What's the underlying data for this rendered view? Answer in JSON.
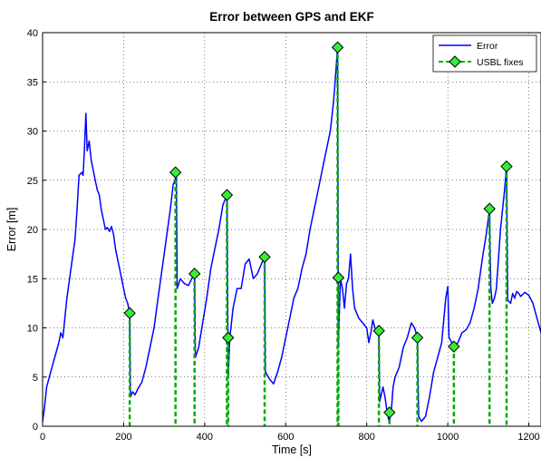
{
  "chart_data": {
    "type": "line",
    "title": "Error between GPS and EKF",
    "xlabel": "Time [s]",
    "ylabel": "Error [m]",
    "xlim": [
      0,
      1230
    ],
    "ylim": [
      0,
      40
    ],
    "xticks": [
      0,
      200,
      400,
      600,
      800,
      1000,
      1200
    ],
    "yticks": [
      0,
      5,
      10,
      15,
      20,
      25,
      30,
      35,
      40
    ],
    "grid": true,
    "legend_position": "top-right",
    "series": [
      {
        "name": "Error",
        "color": "#0000ff",
        "style": "solid",
        "points": [
          [
            0,
            0.5
          ],
          [
            5,
            2
          ],
          [
            10,
            4
          ],
          [
            20,
            5.5
          ],
          [
            30,
            7
          ],
          [
            40,
            8.5
          ],
          [
            45,
            9.5
          ],
          [
            50,
            9
          ],
          [
            55,
            11
          ],
          [
            60,
            13
          ],
          [
            70,
            16
          ],
          [
            80,
            19
          ],
          [
            85,
            22
          ],
          [
            90,
            25.5
          ],
          [
            97,
            25.8
          ],
          [
            100,
            25.5
          ],
          [
            103,
            28
          ],
          [
            107,
            31.8
          ],
          [
            110,
            28
          ],
          [
            115,
            29
          ],
          [
            120,
            27
          ],
          [
            125,
            26
          ],
          [
            130,
            25
          ],
          [
            135,
            24
          ],
          [
            140,
            23.5
          ],
          [
            145,
            22
          ],
          [
            150,
            21
          ],
          [
            155,
            20
          ],
          [
            160,
            20.2
          ],
          [
            165,
            19.8
          ],
          [
            170,
            20.3
          ],
          [
            175,
            19.5
          ],
          [
            180,
            18
          ],
          [
            185,
            17
          ],
          [
            190,
            16
          ],
          [
            195,
            15
          ],
          [
            200,
            14
          ],
          [
            205,
            13
          ],
          [
            210,
            12.5
          ],
          [
            215,
            11.5
          ],
          [
            217,
            3
          ],
          [
            222,
            3.5
          ],
          [
            228,
            3.2
          ],
          [
            235,
            3.8
          ],
          [
            245,
            4.5
          ],
          [
            255,
            6
          ],
          [
            265,
            8
          ],
          [
            275,
            10
          ],
          [
            285,
            13
          ],
          [
            295,
            16
          ],
          [
            305,
            19
          ],
          [
            315,
            22
          ],
          [
            322,
            24.5
          ],
          [
            328,
            25.2
          ],
          [
            330,
            25.8
          ],
          [
            332,
            14
          ],
          [
            340,
            15
          ],
          [
            350,
            14.5
          ],
          [
            360,
            14.3
          ],
          [
            368,
            15
          ],
          [
            375,
            15.5
          ],
          [
            377,
            7
          ],
          [
            385,
            8
          ],
          [
            395,
            10.5
          ],
          [
            405,
            13
          ],
          [
            415,
            16
          ],
          [
            425,
            18
          ],
          [
            435,
            20
          ],
          [
            445,
            22.5
          ],
          [
            455,
            23.5
          ],
          [
            458,
            5
          ],
          [
            462,
            9
          ],
          [
            470,
            12
          ],
          [
            480,
            14
          ],
          [
            490,
            14
          ],
          [
            500,
            16.5
          ],
          [
            510,
            17
          ],
          [
            520,
            15
          ],
          [
            530,
            15.5
          ],
          [
            540,
            16.5
          ],
          [
            548,
            17.2
          ],
          [
            550,
            5.5
          ],
          [
            560,
            4.8
          ],
          [
            570,
            4.3
          ],
          [
            580,
            5.5
          ],
          [
            590,
            7
          ],
          [
            600,
            9
          ],
          [
            610,
            11
          ],
          [
            620,
            13
          ],
          [
            630,
            14
          ],
          [
            640,
            16
          ],
          [
            650,
            17.5
          ],
          [
            660,
            20
          ],
          [
            670,
            22
          ],
          [
            680,
            24
          ],
          [
            690,
            26
          ],
          [
            700,
            28
          ],
          [
            710,
            30
          ],
          [
            718,
            33
          ],
          [
            722,
            35
          ],
          [
            728,
            38.5
          ],
          [
            730,
            8.5
          ],
          [
            735,
            15
          ],
          [
            740,
            14
          ],
          [
            745,
            12
          ],
          [
            750,
            14.5
          ],
          [
            755,
            15
          ],
          [
            760,
            17.5
          ],
          [
            765,
            14
          ],
          [
            770,
            12
          ],
          [
            780,
            11
          ],
          [
            790,
            10.5
          ],
          [
            800,
            10
          ],
          [
            805,
            8.5
          ],
          [
            810,
            9.5
          ],
          [
            815,
            10.8
          ],
          [
            820,
            10
          ],
          [
            825,
            9.7
          ],
          [
            830,
            9.5
          ],
          [
            832,
            2.5
          ],
          [
            840,
            4
          ],
          [
            845,
            3
          ],
          [
            850,
            1.5
          ],
          [
            855,
            0.5
          ],
          [
            860,
            1.3
          ],
          [
            865,
            4
          ],
          [
            870,
            5
          ],
          [
            880,
            6
          ],
          [
            890,
            8
          ],
          [
            900,
            9
          ],
          [
            910,
            10.5
          ],
          [
            918,
            10
          ],
          [
            925,
            9
          ],
          [
            928,
            1
          ],
          [
            935,
            0.5
          ],
          [
            945,
            1
          ],
          [
            955,
            3
          ],
          [
            965,
            5.5
          ],
          [
            975,
            7
          ],
          [
            985,
            8.5
          ],
          [
            995,
            13
          ],
          [
            1000,
            14.2
          ],
          [
            1003,
            9
          ],
          [
            1010,
            8.5
          ],
          [
            1015,
            8
          ],
          [
            1025,
            8.5
          ],
          [
            1035,
            9.5
          ],
          [
            1045,
            9.8
          ],
          [
            1055,
            10.5
          ],
          [
            1065,
            12
          ],
          [
            1075,
            14
          ],
          [
            1085,
            17
          ],
          [
            1095,
            19.5
          ],
          [
            1103,
            22
          ],
          [
            1106,
            14
          ],
          [
            1110,
            12.5
          ],
          [
            1115,
            13
          ],
          [
            1120,
            14
          ],
          [
            1130,
            20
          ],
          [
            1140,
            24
          ],
          [
            1145,
            26.5
          ],
          [
            1148,
            12.8
          ],
          [
            1155,
            12.5
          ],
          [
            1160,
            13.5
          ],
          [
            1165,
            13
          ],
          [
            1170,
            13.7
          ],
          [
            1175,
            13.5
          ],
          [
            1180,
            13.2
          ],
          [
            1190,
            13.6
          ],
          [
            1200,
            13.3
          ],
          [
            1210,
            12.5
          ],
          [
            1220,
            11
          ],
          [
            1230,
            9.5
          ]
        ]
      },
      {
        "name": "USBL fixes",
        "color": "#00aa00",
        "marker_fill": "#33ee33",
        "style": "dashed",
        "marker": "diamond",
        "points": [
          [
            215,
            11.5
          ],
          [
            328,
            25.8
          ],
          [
            375,
            15.5
          ],
          [
            455,
            23.5
          ],
          [
            458,
            9
          ],
          [
            548,
            17.2
          ],
          [
            728,
            38.5
          ],
          [
            730,
            15.1
          ],
          [
            830,
            9.7
          ],
          [
            856,
            1.4
          ],
          [
            925,
            9
          ],
          [
            1015,
            8.1
          ],
          [
            1103,
            22.1
          ],
          [
            1145,
            26.4
          ]
        ]
      }
    ]
  }
}
